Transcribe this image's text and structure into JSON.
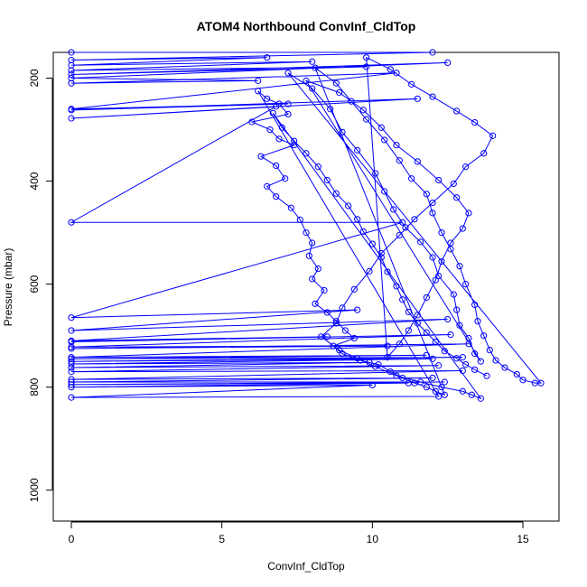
{
  "chart_data": {
    "type": "scatter",
    "title": "ATOM4 Northbound ConvInf_CldTop",
    "xlabel": "ConvInf_CldTop",
    "ylabel": "Pressure (mbar)",
    "xlim": [
      -0.6,
      16.2
    ],
    "ylim": [
      1060,
      150
    ],
    "x_ticks": [
      0,
      5,
      10,
      15
    ],
    "y_ticks": [
      200,
      400,
      600,
      800,
      1000
    ],
    "grid": false,
    "legend": "none",
    "colors": {
      "series": "#0000ff",
      "axis": "#000000",
      "background": "#ffffff"
    },
    "series": [
      {
        "style": "lines+markers",
        "points": [
          [
            0.0,
            150
          ],
          [
            12.0,
            150
          ],
          [
            0.0,
            165
          ],
          [
            6.5,
            160
          ],
          [
            0.0,
            175
          ],
          [
            8.0,
            168
          ],
          [
            0.0,
            185
          ],
          [
            9.8,
            178
          ],
          [
            0.0,
            193
          ],
          [
            12.5,
            170
          ],
          [
            0.0,
            200
          ],
          [
            6.2,
            205
          ],
          [
            0.0,
            210
          ],
          [
            10.8,
            190
          ],
          [
            0.0,
            260
          ],
          [
            7.2,
            250
          ],
          [
            0.0,
            262
          ],
          [
            11.5,
            240
          ],
          [
            0.0,
            278
          ],
          [
            6.8,
            255
          ],
          [
            0.0,
            480
          ],
          [
            11.0,
            480
          ],
          [
            0.0,
            665
          ],
          [
            9.5,
            650
          ],
          [
            0.0,
            690
          ],
          [
            12.5,
            668
          ],
          [
            0.0,
            710
          ],
          [
            8.5,
            702
          ],
          [
            0.0,
            712
          ],
          [
            12.6,
            698
          ],
          [
            0.0,
            722
          ],
          [
            10.5,
            720
          ],
          [
            0.0,
            725
          ],
          [
            13.2,
            716
          ],
          [
            0.0,
            742
          ],
          [
            11.8,
            738
          ],
          [
            0.0,
            745
          ],
          [
            13.0,
            742
          ],
          [
            0.0,
            750
          ],
          [
            12.0,
            745
          ],
          [
            0.0,
            755
          ],
          [
            9.9,
            752
          ],
          [
            0.0,
            762
          ],
          [
            12.2,
            758
          ],
          [
            0.0,
            770
          ],
          [
            13.0,
            768
          ],
          [
            0.0,
            785
          ],
          [
            12.0,
            782
          ],
          [
            0.0,
            790
          ],
          [
            12.4,
            790
          ],
          [
            0.0,
            795
          ],
          [
            11.2,
            792
          ],
          [
            0.0,
            800
          ],
          [
            10.0,
            796
          ],
          [
            0.0,
            820
          ],
          [
            12.2,
            818
          ],
          [
            6.2,
            225
          ],
          [
            6.5,
            240
          ],
          [
            6.9,
            250
          ],
          [
            7.2,
            270
          ],
          [
            6.0,
            285
          ],
          [
            6.6,
            300
          ],
          [
            6.9,
            318
          ],
          [
            7.4,
            330
          ],
          [
            6.3,
            352
          ],
          [
            6.8,
            370
          ],
          [
            7.1,
            395
          ],
          [
            6.5,
            410
          ],
          [
            6.8,
            430
          ],
          [
            7.3,
            452
          ],
          [
            7.6,
            475
          ],
          [
            7.8,
            500
          ],
          [
            8.0,
            520
          ],
          [
            7.9,
            545
          ],
          [
            8.2,
            570
          ],
          [
            8.0,
            590
          ],
          [
            8.4,
            612
          ],
          [
            8.1,
            638
          ],
          [
            8.5,
            655
          ],
          [
            8.8,
            672
          ],
          [
            9.1,
            690
          ],
          [
            9.4,
            705
          ],
          [
            8.7,
            720
          ],
          [
            9.0,
            735
          ],
          [
            9.6,
            748
          ],
          [
            10.2,
            756
          ],
          [
            10.6,
            770
          ],
          [
            11.0,
            782
          ],
          [
            11.4,
            792
          ],
          [
            11.8,
            800
          ],
          [
            12.1,
            808
          ],
          [
            12.4,
            815
          ],
          [
            8.1,
            180
          ],
          [
            8.8,
            210
          ],
          [
            9.3,
            245
          ],
          [
            9.8,
            280
          ],
          [
            10.4,
            320
          ],
          [
            10.9,
            360
          ],
          [
            11.3,
            395
          ],
          [
            11.8,
            425
          ],
          [
            12.0,
            462
          ],
          [
            12.3,
            500
          ],
          [
            12.6,
            532
          ],
          [
            12.9,
            565
          ],
          [
            13.1,
            600
          ],
          [
            13.4,
            640
          ],
          [
            13.5,
            672
          ],
          [
            13.7,
            700
          ],
          [
            13.9,
            728
          ],
          [
            14.1,
            748
          ],
          [
            14.4,
            762
          ],
          [
            14.8,
            775
          ],
          [
            15.0,
            786
          ],
          [
            15.4,
            792
          ],
          [
            15.6,
            792
          ],
          [
            7.2,
            190
          ],
          [
            8.0,
            220
          ],
          [
            8.6,
            260
          ],
          [
            9.0,
            305
          ],
          [
            9.5,
            340
          ],
          [
            10.1,
            385
          ],
          [
            10.4,
            420
          ],
          [
            10.7,
            455
          ],
          [
            11.1,
            490
          ],
          [
            11.6,
            518
          ],
          [
            12.0,
            548
          ],
          [
            12.2,
            584
          ],
          [
            12.7,
            620
          ],
          [
            12.8,
            650
          ],
          [
            12.9,
            680
          ],
          [
            13.2,
            705
          ],
          [
            13.4,
            735
          ],
          [
            13.6,
            750
          ],
          [
            7.8,
            205
          ],
          [
            8.9,
            228
          ],
          [
            9.7,
            262
          ],
          [
            10.3,
            296
          ],
          [
            10.8,
            330
          ],
          [
            11.5,
            362
          ],
          [
            12.2,
            398
          ],
          [
            12.8,
            432
          ],
          [
            13.2,
            462
          ],
          [
            13.0,
            492
          ],
          [
            12.6,
            520
          ],
          [
            12.3,
            556
          ],
          [
            12.1,
            592
          ],
          [
            11.8,
            626
          ],
          [
            11.5,
            660
          ],
          [
            11.2,
            690
          ],
          [
            10.9,
            716
          ],
          [
            10.5,
            742
          ],
          [
            9.8,
            160
          ],
          [
            10.6,
            183
          ],
          [
            11.3,
            212
          ],
          [
            12.0,
            236
          ],
          [
            12.8,
            264
          ],
          [
            13.4,
            286
          ],
          [
            14.0,
            312
          ],
          [
            13.7,
            346
          ],
          [
            13.1,
            372
          ],
          [
            12.7,
            405
          ],
          [
            12.0,
            442
          ],
          [
            11.4,
            474
          ],
          [
            10.9,
            505
          ],
          [
            10.3,
            540
          ],
          [
            9.9,
            575
          ],
          [
            9.4,
            610
          ],
          [
            9.0,
            646
          ],
          [
            8.8,
            676
          ],
          [
            8.3,
            702
          ],
          [
            8.9,
            728
          ],
          [
            9.5,
            744
          ],
          [
            10.1,
            760
          ],
          [
            10.8,
            778
          ],
          [
            11.6,
            790
          ],
          [
            12.3,
            800
          ],
          [
            13.0,
            808
          ],
          [
            13.3,
            815
          ],
          [
            13.6,
            822
          ],
          [
            6.7,
            268
          ],
          [
            7.0,
            296
          ],
          [
            7.4,
            322
          ],
          [
            7.8,
            346
          ],
          [
            8.2,
            372
          ],
          [
            8.5,
            398
          ],
          [
            8.8,
            424
          ],
          [
            9.2,
            448
          ],
          [
            9.5,
            474
          ],
          [
            9.7,
            498
          ],
          [
            10.0,
            522
          ],
          [
            10.3,
            548
          ],
          [
            10.5,
            576
          ],
          [
            10.8,
            604
          ],
          [
            11.0,
            630
          ],
          [
            11.2,
            654
          ],
          [
            11.5,
            676
          ],
          [
            11.8,
            694
          ],
          [
            12.1,
            712
          ],
          [
            12.4,
            730
          ],
          [
            12.8,
            744
          ],
          [
            13.1,
            756
          ],
          [
            13.4,
            766
          ],
          [
            13.8,
            778
          ]
        ]
      }
    ]
  }
}
